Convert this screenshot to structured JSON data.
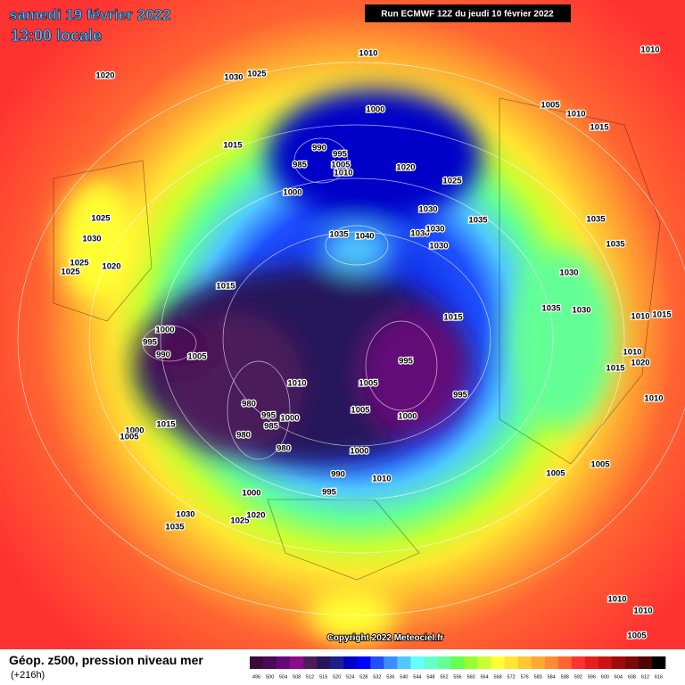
{
  "header": {
    "date": "samedi 19 février 2022",
    "time": "13:00 locale",
    "run": "Run ECMWF 12Z du jeudi 10 février 2022"
  },
  "map": {
    "pressure_labels": [
      1010,
      1020,
      1030,
      1025,
      1000,
      1015,
      990,
      995,
      985,
      1005,
      1010,
      1000,
      1020,
      1025,
      1030,
      1035,
      1035,
      1040,
      1030,
      1030,
      1030,
      1015,
      1015,
      1000,
      995,
      990,
      1005,
      1010,
      1005,
      995,
      995,
      980,
      995,
      1000,
      985,
      980,
      980,
      1005,
      1000,
      1000,
      990,
      1010,
      995,
      1000,
      1030,
      1035,
      1025,
      1020,
      1015,
      1000,
      1005,
      1005,
      1005,
      1035,
      1030,
      1030,
      1035,
      1035,
      1005,
      1010,
      1015,
      1010,
      1025,
      1030,
      1025,
      1020,
      1025,
      1010,
      1015,
      1010,
      1020,
      1015,
      1010,
      1005,
      1010,
      1010
    ]
  },
  "copyright": "Copyright 2022 Meteociel.fr",
  "legend": {
    "title": "Géop. z500, pression niveau mer",
    "lead": "(+216h)",
    "scale": {
      "labels": [
        496,
        500,
        504,
        508,
        512,
        516,
        520,
        524,
        528,
        532,
        536,
        540,
        544,
        548,
        552,
        556,
        560,
        564,
        568,
        572,
        576,
        580,
        584,
        588,
        592,
        596,
        600,
        604,
        608,
        612,
        616
      ],
      "colors": [
        "#3c0a3c",
        "#4b0a55",
        "#640a78",
        "#8c0a8c",
        "#4b1e5a",
        "#28145a",
        "#1e1e8c",
        "#0000c8",
        "#0000ff",
        "#1e50ff",
        "#3c8cff",
        "#50c8ff",
        "#64ffff",
        "#64ffc8",
        "#64ff96",
        "#64ff50",
        "#96ff32",
        "#c8ff32",
        "#ffff32",
        "#ffe632",
        "#ffc832",
        "#ffaa32",
        "#ff8c32",
        "#ff6432",
        "#ff3232",
        "#e61e1e",
        "#c81414",
        "#a00a0a",
        "#780a0a",
        "#500505",
        "#000000"
      ]
    }
  }
}
